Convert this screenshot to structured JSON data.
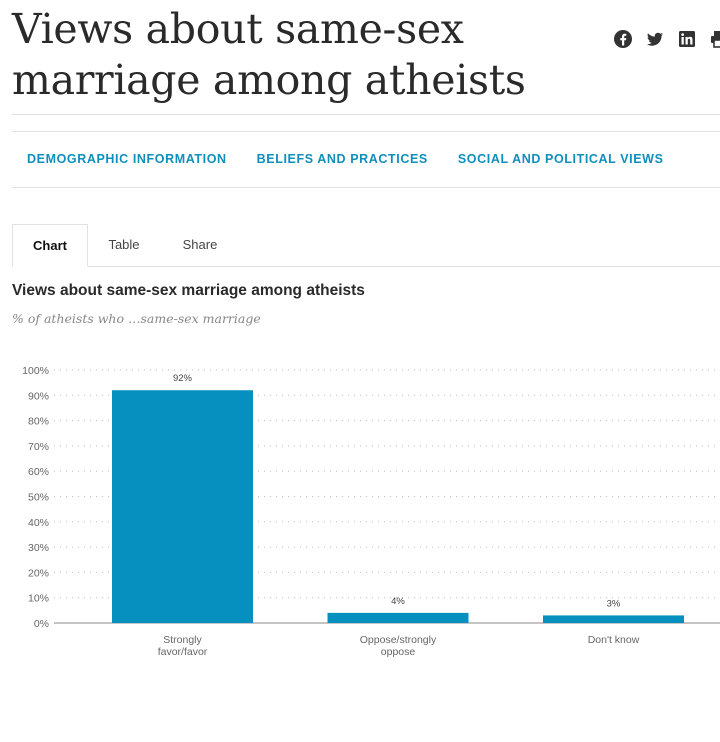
{
  "header": {
    "title": "Views about same-sex marriage among atheists"
  },
  "share": {
    "icons": [
      "facebook-icon",
      "twitter-icon",
      "linkedin-icon",
      "print-icon"
    ]
  },
  "nav": {
    "items": [
      "DEMOGRAPHIC INFORMATION",
      "BELIEFS AND PRACTICES",
      "SOCIAL AND POLITICAL VIEWS"
    ]
  },
  "tabs": {
    "items": [
      "Chart",
      "Table",
      "Share"
    ],
    "active": "Chart"
  },
  "colors": {
    "bar": "#0590c0",
    "nav": "#0f8fbd"
  },
  "chart_data": {
    "type": "bar",
    "title": "Views about same-sex marriage among atheists",
    "subtitle": "% of atheists who …same-sex marriage",
    "categories": [
      "Strongly favor/favor",
      "Oppose/strongly oppose",
      "Don't know"
    ],
    "category_lines": [
      [
        "Strongly",
        "favor/favor"
      ],
      [
        "Oppose/strongly",
        "oppose"
      ],
      [
        "Don't know"
      ]
    ],
    "values": [
      92,
      4,
      3
    ],
    "data_labels": [
      "92%",
      "4%",
      "3%"
    ],
    "ylim": [
      0,
      100
    ],
    "yticks": [
      0,
      10,
      20,
      30,
      40,
      50,
      60,
      70,
      80,
      90,
      100
    ],
    "ytick_labels": [
      "0%",
      "10%",
      "20%",
      "30%",
      "40%",
      "50%",
      "60%",
      "70%",
      "80%",
      "90%",
      "100%"
    ],
    "grid": true
  }
}
